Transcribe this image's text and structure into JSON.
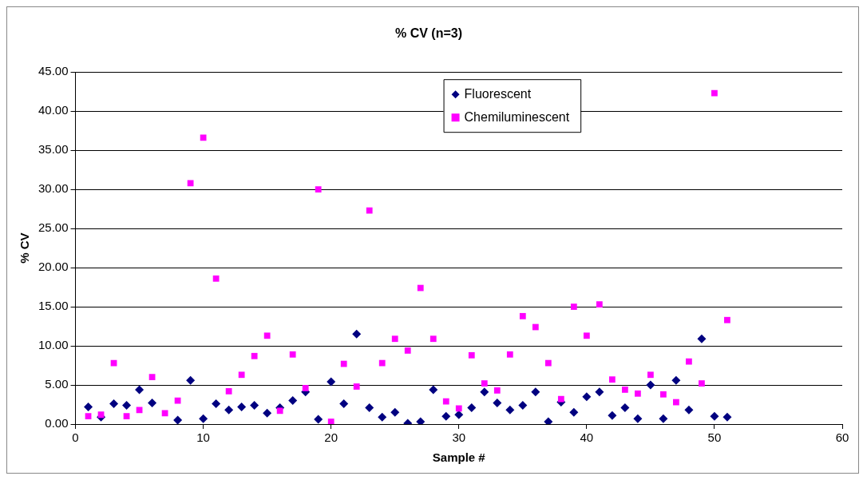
{
  "chart_data": {
    "type": "scatter",
    "title": "% CV (n=3)",
    "xlabel": "Sample #",
    "ylabel": "% CV",
    "x": [
      1,
      2,
      3,
      4,
      5,
      6,
      7,
      8,
      9,
      10,
      11,
      12,
      13,
      14,
      15,
      16,
      17,
      18,
      19,
      20,
      21,
      22,
      23,
      24,
      25,
      26,
      27,
      28,
      29,
      30,
      31,
      32,
      33,
      34,
      35,
      36,
      37,
      38,
      39,
      40,
      41,
      42,
      43,
      44,
      45,
      46,
      47,
      48,
      49,
      50,
      51
    ],
    "series": [
      {
        "name": "Fluorescent",
        "color": "#000080",
        "marker": "diamond",
        "values": [
          2.2,
          0.9,
          2.6,
          2.4,
          4.4,
          2.7,
          null,
          0.5,
          5.6,
          0.7,
          2.6,
          1.8,
          2.2,
          2.4,
          1.4,
          2.1,
          3.0,
          4.1,
          0.6,
          5.4,
          2.6,
          11.5,
          2.1,
          0.9,
          1.5,
          0.1,
          0.3,
          4.4,
          1.0,
          1.2,
          2.1,
          4.1,
          2.7,
          1.8,
          2.4,
          4.1,
          0.3,
          2.8,
          1.5,
          3.5,
          4.1,
          1.1,
          2.1,
          0.7,
          5.0,
          0.7,
          5.6,
          1.8,
          10.9,
          1.0,
          0.9
        ]
      },
      {
        "name": "Chemiluminescent",
        "color": "#ff00ff",
        "marker": "square",
        "values": [
          1.0,
          1.2,
          7.8,
          1.0,
          1.8,
          6.0,
          1.4,
          3.0,
          30.8,
          36.6,
          18.6,
          4.2,
          6.3,
          8.7,
          11.3,
          1.7,
          8.9,
          4.6,
          30.0,
          0.3,
          7.7,
          4.8,
          27.3,
          7.8,
          10.9,
          9.4,
          17.4,
          10.9,
          2.9,
          2.0,
          8.8,
          5.2,
          4.3,
          8.9,
          13.8,
          12.4,
          7.8,
          3.2,
          15.0,
          11.3,
          15.3,
          5.7,
          4.4,
          3.9,
          6.3,
          3.8,
          2.8,
          8.0,
          5.2,
          42.3,
          13.3
        ]
      }
    ],
    "xlim": [
      0,
      60
    ],
    "xticks": [
      0,
      10,
      20,
      30,
      40,
      50,
      60
    ],
    "ylim": [
      0,
      45
    ],
    "yticks": [
      {
        "value": 0,
        "label": "0.00"
      },
      {
        "value": 5,
        "label": "5.00"
      },
      {
        "value": 10,
        "label": "10.00"
      },
      {
        "value": 15,
        "label": "15.00"
      },
      {
        "value": 20,
        "label": "20.00"
      },
      {
        "value": 25,
        "label": "25.00"
      },
      {
        "value": 30,
        "label": "30.00"
      },
      {
        "value": 35,
        "label": "35.00"
      },
      {
        "value": 40,
        "label": "40.00"
      },
      {
        "value": 45,
        "label": "45.00"
      }
    ],
    "grid": "y",
    "legend": "top"
  }
}
